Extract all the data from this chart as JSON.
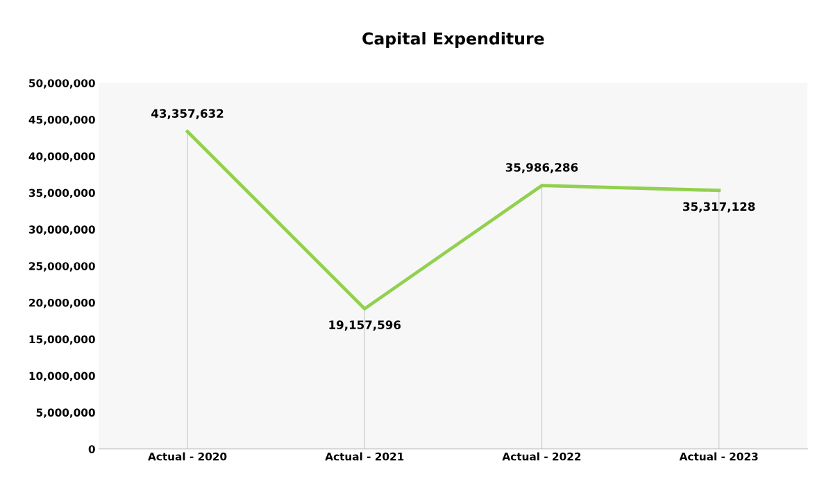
{
  "chart_data": {
    "type": "line",
    "title": "Capital Expenditure",
    "categories": [
      "Actual - 2020",
      "Actual - 2021",
      "Actual - 2022",
      "Actual - 2023"
    ],
    "series": [
      {
        "color": "#92d050",
        "values": [
          43357632,
          19157596,
          35986286,
          35317128
        ],
        "value_labels": [
          "43,357,632",
          "19,157,596",
          "35,986,286",
          "35,317,128"
        ]
      }
    ],
    "ylim": [
      0,
      50000000
    ],
    "yticks": [
      {
        "value": 0,
        "label": "0"
      },
      {
        "value": 5000000,
        "label": "5,000,000"
      },
      {
        "value": 10000000,
        "label": "10,000,000"
      },
      {
        "value": 15000000,
        "label": "15,000,000"
      },
      {
        "value": 20000000,
        "label": "20,000,000"
      },
      {
        "value": 25000000,
        "label": "25,000,000"
      },
      {
        "value": 30000000,
        "label": "30,000,000"
      },
      {
        "value": 35000000,
        "label": "35,000,000"
      },
      {
        "value": 40000000,
        "label": "40,000,000"
      },
      {
        "value": 45000000,
        "label": "45,000,000"
      },
      {
        "value": 50000000,
        "label": "50,000,000"
      }
    ],
    "grid": "x",
    "legend": false,
    "marker": "none",
    "line_style": "solid"
  }
}
